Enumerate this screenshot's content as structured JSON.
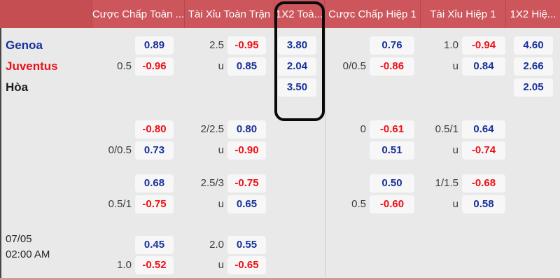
{
  "header": {
    "columns": [
      {
        "label": ""
      },
      {
        "label": "Cược Chấp Toàn ..."
      },
      {
        "label": "Tài Xỉu Toàn Trận"
      },
      {
        "label": "1X2 Toà..."
      },
      {
        "label": "Cược Chấp Hiệp 1"
      },
      {
        "label": "Tài Xỉu Hiệp 1"
      },
      {
        "label": "1X2 Hiệ..."
      }
    ]
  },
  "match": {
    "date": "07/05",
    "time": "02:00 AM",
    "teams": [
      {
        "name": "Genoa",
        "color": "#16309c"
      },
      {
        "name": "Juventus",
        "color": "#e8121a"
      },
      {
        "name": "Hòa",
        "color": "#1c1c1c"
      }
    ]
  },
  "colors": {
    "header_bg": "#cc565c",
    "header_left_bg": "#c54e53",
    "header_divider": "#b2494e",
    "body_bg": "#e9e9e9",
    "cell_bg": "#f7f7f7",
    "odd_blue": "#17309b",
    "odd_red": "#ee1016",
    "line_text": "#3c3c3c",
    "highlight_border": "#0a0a0a",
    "bottom_line": "#d4989b"
  },
  "rows": [
    {
      "team": 0,
      "cells": {
        "ft_hcp": {
          "line": "",
          "odd": "0.89",
          "tone": "blue"
        },
        "ft_ou": {
          "line": "2.5",
          "odd": "-0.95",
          "tone": "red"
        },
        "ft_1x2": {
          "odd": "3.80",
          "tone": "blue"
        },
        "h1_hcp": {
          "line": "",
          "odd": "0.76",
          "tone": "blue"
        },
        "h1_ou": {
          "line": "1.0",
          "odd": "-0.94",
          "tone": "red"
        },
        "h1_1x2": {
          "odd": "4.60",
          "tone": "blue"
        }
      }
    },
    {
      "team": 1,
      "cells": {
        "ft_hcp": {
          "line": "0.5",
          "odd": "-0.96",
          "tone": "red"
        },
        "ft_ou": {
          "line": "u",
          "odd": "0.85",
          "tone": "blue"
        },
        "ft_1x2": {
          "odd": "2.04",
          "tone": "blue"
        },
        "h1_hcp": {
          "line": "0/0.5",
          "odd": "-0.86",
          "tone": "red"
        },
        "h1_ou": {
          "line": "u",
          "odd": "0.84",
          "tone": "blue"
        },
        "h1_1x2": {
          "odd": "2.66",
          "tone": "blue"
        }
      }
    },
    {
      "team": 2,
      "cells": {
        "ft_1x2": {
          "odd": "3.50",
          "tone": "blue"
        },
        "h1_1x2": {
          "odd": "2.05",
          "tone": "blue"
        }
      }
    },
    {
      "cells": {
        "ft_hcp": {
          "line": "",
          "odd": "-0.80",
          "tone": "red"
        },
        "ft_ou": {
          "line": "2/2.5",
          "odd": "0.80",
          "tone": "blue"
        },
        "h1_hcp": {
          "line": "0",
          "odd": "-0.61",
          "tone": "red"
        },
        "h1_ou": {
          "line": "0.5/1",
          "odd": "0.64",
          "tone": "blue"
        }
      }
    },
    {
      "cells": {
        "ft_hcp": {
          "line": "0/0.5",
          "odd": "0.73",
          "tone": "blue"
        },
        "ft_ou": {
          "line": "u",
          "odd": "-0.90",
          "tone": "red"
        },
        "h1_hcp": {
          "line": "",
          "odd": "0.51",
          "tone": "blue"
        },
        "h1_ou": {
          "line": "u",
          "odd": "-0.74",
          "tone": "red"
        }
      }
    },
    {
      "cells": {
        "ft_hcp": {
          "line": "",
          "odd": "0.68",
          "tone": "blue"
        },
        "ft_ou": {
          "line": "2.5/3",
          "odd": "-0.75",
          "tone": "red"
        },
        "h1_hcp": {
          "line": "",
          "odd": "0.50",
          "tone": "blue"
        },
        "h1_ou": {
          "line": "1/1.5",
          "odd": "-0.68",
          "tone": "red"
        }
      }
    },
    {
      "cells": {
        "ft_hcp": {
          "line": "0.5/1",
          "odd": "-0.75",
          "tone": "red"
        },
        "ft_ou": {
          "line": "u",
          "odd": "0.65",
          "tone": "blue"
        },
        "h1_hcp": {
          "line": "0.5",
          "odd": "-0.60",
          "tone": "red"
        },
        "h1_ou": {
          "line": "u",
          "odd": "0.58",
          "tone": "blue"
        }
      }
    },
    {
      "cells": {
        "ft_hcp": {
          "line": "",
          "odd": "0.45",
          "tone": "blue"
        },
        "ft_ou": {
          "line": "2.0",
          "odd": "0.55",
          "tone": "blue"
        }
      }
    },
    {
      "cells": {
        "ft_hcp": {
          "line": "1.0",
          "odd": "-0.52",
          "tone": "red"
        },
        "ft_ou": {
          "line": "u",
          "odd": "-0.65",
          "tone": "red"
        }
      }
    }
  ]
}
